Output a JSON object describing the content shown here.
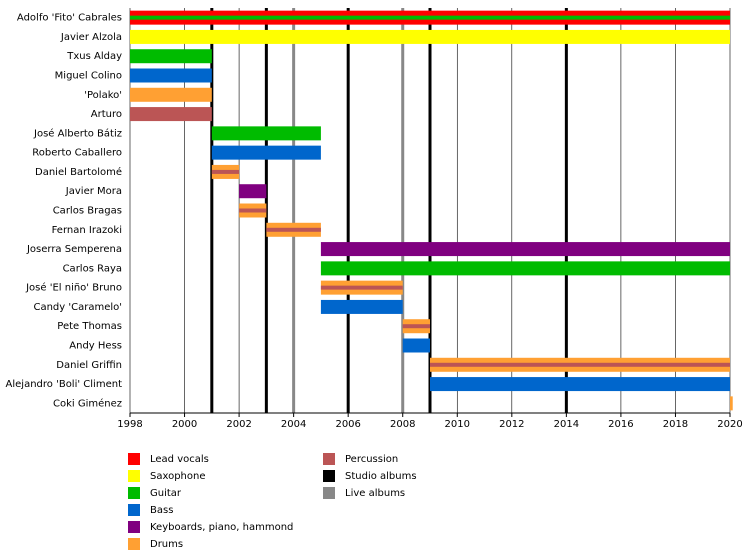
{
  "chart_data": {
    "type": "timeline",
    "xlim": [
      1998,
      2020
    ],
    "xticks": [
      1998,
      2000,
      2002,
      2004,
      2006,
      2008,
      2010,
      2012,
      2014,
      2016,
      2018,
      2020
    ],
    "grid": true,
    "legend": [
      {
        "name": "Lead vocals",
        "color": "#ff0000"
      },
      {
        "name": "Saxophone",
        "color": "#ffff00"
      },
      {
        "name": "Guitar",
        "color": "#00bb00"
      },
      {
        "name": "Bass",
        "color": "#0066cc"
      },
      {
        "name": "Keyboards, piano, hammond",
        "color": "#800080"
      },
      {
        "name": "Drums",
        "color": "#ffa033"
      },
      {
        "name": "Percussion",
        "color": "#bb5555"
      },
      {
        "name": "Studio albums",
        "color": "#000000"
      },
      {
        "name": "Live albums",
        "color": "#888888"
      }
    ],
    "studio_albums": [
      2001,
      2003,
      2006,
      2009,
      2014
    ],
    "live_albums": [
      2004,
      2008
    ],
    "rows": [
      {
        "name": "Adolfo 'Fito' Cabrales",
        "bars": [
          {
            "role": "Lead vocals",
            "stripe": "Guitar",
            "start": 1998,
            "end": 2020
          }
        ]
      },
      {
        "name": "Javier Alzola",
        "bars": [
          {
            "role": "Saxophone",
            "start": 1998,
            "end": 2020
          }
        ]
      },
      {
        "name": "Txus Alday",
        "bars": [
          {
            "role": "Guitar",
            "start": 1998,
            "end": 2001
          }
        ]
      },
      {
        "name": "Miguel Colino",
        "bars": [
          {
            "role": "Bass",
            "start": 1998,
            "end": 2001
          }
        ]
      },
      {
        "name": "'Polako'",
        "bars": [
          {
            "role": "Drums",
            "start": 1998,
            "end": 2001
          }
        ]
      },
      {
        "name": "Arturo",
        "bars": [
          {
            "role": "Percussion",
            "start": 1998,
            "end": 2001
          }
        ]
      },
      {
        "name": "José Alberto Bátiz",
        "bars": [
          {
            "role": "Guitar",
            "start": 2001,
            "end": 2005
          }
        ]
      },
      {
        "name": "Roberto Caballero",
        "bars": [
          {
            "role": "Bass",
            "start": 2001,
            "end": 2005
          }
        ]
      },
      {
        "name": "Daniel Bartolomé",
        "bars": [
          {
            "role": "Drums",
            "stripe": "Percussion",
            "start": 2001,
            "end": 2002
          }
        ]
      },
      {
        "name": "Javier Mora",
        "bars": [
          {
            "role": "Keyboards, piano, hammond",
            "start": 2002,
            "end": 2003
          }
        ]
      },
      {
        "name": "Carlos Bragas",
        "bars": [
          {
            "role": "Drums",
            "stripe": "Percussion",
            "start": 2002,
            "end": 2003
          }
        ]
      },
      {
        "name": "Fernan Irazoki",
        "bars": [
          {
            "role": "Drums",
            "stripe": "Percussion",
            "start": 2003,
            "end": 2005
          }
        ]
      },
      {
        "name": "Joserra Semperena",
        "bars": [
          {
            "role": "Keyboards, piano, hammond",
            "start": 2005,
            "end": 2020
          }
        ]
      },
      {
        "name": "Carlos Raya",
        "bars": [
          {
            "role": "Guitar",
            "start": 2005,
            "end": 2020
          }
        ]
      },
      {
        "name": "José 'El niño' Bruno",
        "bars": [
          {
            "role": "Drums",
            "stripe": "Percussion",
            "start": 2005,
            "end": 2008
          }
        ]
      },
      {
        "name": "Candy 'Caramelo'",
        "bars": [
          {
            "role": "Bass",
            "start": 2005,
            "end": 2008
          }
        ]
      },
      {
        "name": "Pete Thomas",
        "bars": [
          {
            "role": "Drums",
            "stripe": "Percussion",
            "start": 2008,
            "end": 2009
          }
        ]
      },
      {
        "name": "Andy Hess",
        "bars": [
          {
            "role": "Bass",
            "start": 2008,
            "end": 2009
          }
        ]
      },
      {
        "name": "Daniel Griffin",
        "bars": [
          {
            "role": "Drums",
            "stripe": "Percussion",
            "start": 2009,
            "end": 2020
          }
        ]
      },
      {
        "name": "Alejandro 'Boli' Climent",
        "bars": [
          {
            "role": "Bass",
            "start": 2009,
            "end": 2020
          }
        ]
      },
      {
        "name": "Coki Giménez",
        "bars": [
          {
            "role": "Drums",
            "start": 2020,
            "end": 2020.1
          }
        ]
      }
    ]
  }
}
